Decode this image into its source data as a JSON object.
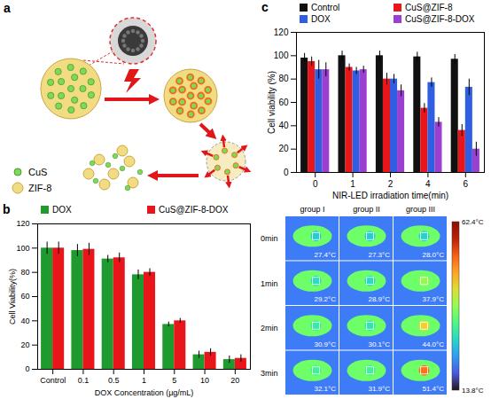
{
  "chart_data": [
    {
      "panel": "c",
      "type": "bar",
      "categories": [
        0,
        1,
        2,
        4,
        6
      ],
      "x_label": "NIR-LED irradiation time(min)",
      "y_label": "Cell viability (%)",
      "ylim": [
        0,
        120
      ],
      "yticks": [
        0,
        20,
        40,
        60,
        80,
        100,
        120
      ],
      "grid": false,
      "legend": "top",
      "series": [
        {
          "name": "Control",
          "color": "#111111",
          "values": [
            98,
            100,
            100,
            99,
            97
          ],
          "errors": [
            4,
            4,
            4,
            4,
            4
          ]
        },
        {
          "name": "CuS@ZIF-8",
          "color": "#e8161b",
          "values": [
            95,
            90,
            80,
            55,
            36
          ],
          "errors": [
            4,
            3,
            5,
            4,
            5
          ]
        },
        {
          "name": "DOX",
          "color": "#2f5fe0",
          "values": [
            88,
            87,
            80,
            77,
            73
          ],
          "errors": [
            8,
            3,
            4,
            4,
            7
          ]
        },
        {
          "name": "CuS@ZIF-8-DOX",
          "color": "#9b3fd1",
          "values": [
            88,
            88,
            70,
            43,
            20
          ],
          "errors": [
            6,
            3,
            5,
            4,
            6
          ]
        }
      ]
    },
    {
      "panel": "b",
      "type": "bar",
      "categories": [
        "Control",
        "0.1",
        "0.5",
        "1",
        "5",
        "10",
        "20"
      ],
      "x_label": "DOX Concentration (μg/mL)",
      "y_label": "Cell Viability(%)",
      "ylim": [
        0,
        120
      ],
      "yticks": [
        0,
        20,
        40,
        60,
        80,
        100,
        120
      ],
      "grid": false,
      "legend": "top",
      "series": [
        {
          "name": "DOX",
          "color": "#1f9a2e",
          "values": [
            100,
            98,
            91,
            78,
            37,
            12,
            8
          ],
          "errors": [
            5,
            5,
            3,
            4,
            2,
            3,
            3
          ]
        },
        {
          "name": "CuS@ZIF-8-DOX",
          "color": "#e8161b",
          "values": [
            100,
            99,
            92,
            80,
            40,
            14,
            9
          ],
          "errors": [
            5,
            5,
            4,
            3,
            2,
            3,
            3
          ]
        }
      ]
    }
  ],
  "schematic": {
    "panel": "a",
    "legend": [
      {
        "label": "CuS",
        "color": "#7ed957"
      },
      {
        "label": "ZIF-8",
        "color": "#f2dc83"
      }
    ]
  },
  "thermal": {
    "columns": [
      "group I",
      "group II",
      "group III"
    ],
    "rows": [
      "0min",
      "1min",
      "2min",
      "3min"
    ],
    "cells": [
      [
        {
          "value": 27.4,
          "label": "27.4°C"
        },
        {
          "value": 27.3,
          "label": "27.3°C"
        },
        {
          "value": 28.0,
          "label": "28.0°C"
        }
      ],
      [
        {
          "value": 29.2,
          "label": "29.2°C"
        },
        {
          "value": 28.9,
          "label": "28.9°C"
        },
        {
          "value": 37.9,
          "label": "37.9°C"
        }
      ],
      [
        {
          "value": 30.9,
          "label": "30.9°C"
        },
        {
          "value": 30.1,
          "label": "30.1°C"
        },
        {
          "value": 44.0,
          "label": "44.0°C"
        }
      ],
      [
        {
          "value": 32.1,
          "label": "32.1°C"
        },
        {
          "value": 31.9,
          "label": "31.9°C"
        },
        {
          "value": 51.4,
          "label": "51.4°C"
        }
      ]
    ],
    "colorbar": {
      "range": [
        13.8,
        62.4
      ],
      "ticks": [
        {
          "value": 13.8,
          "label": "13.8°C"
        },
        {
          "value": 62.4,
          "label": "62.4°C"
        }
      ]
    }
  }
}
